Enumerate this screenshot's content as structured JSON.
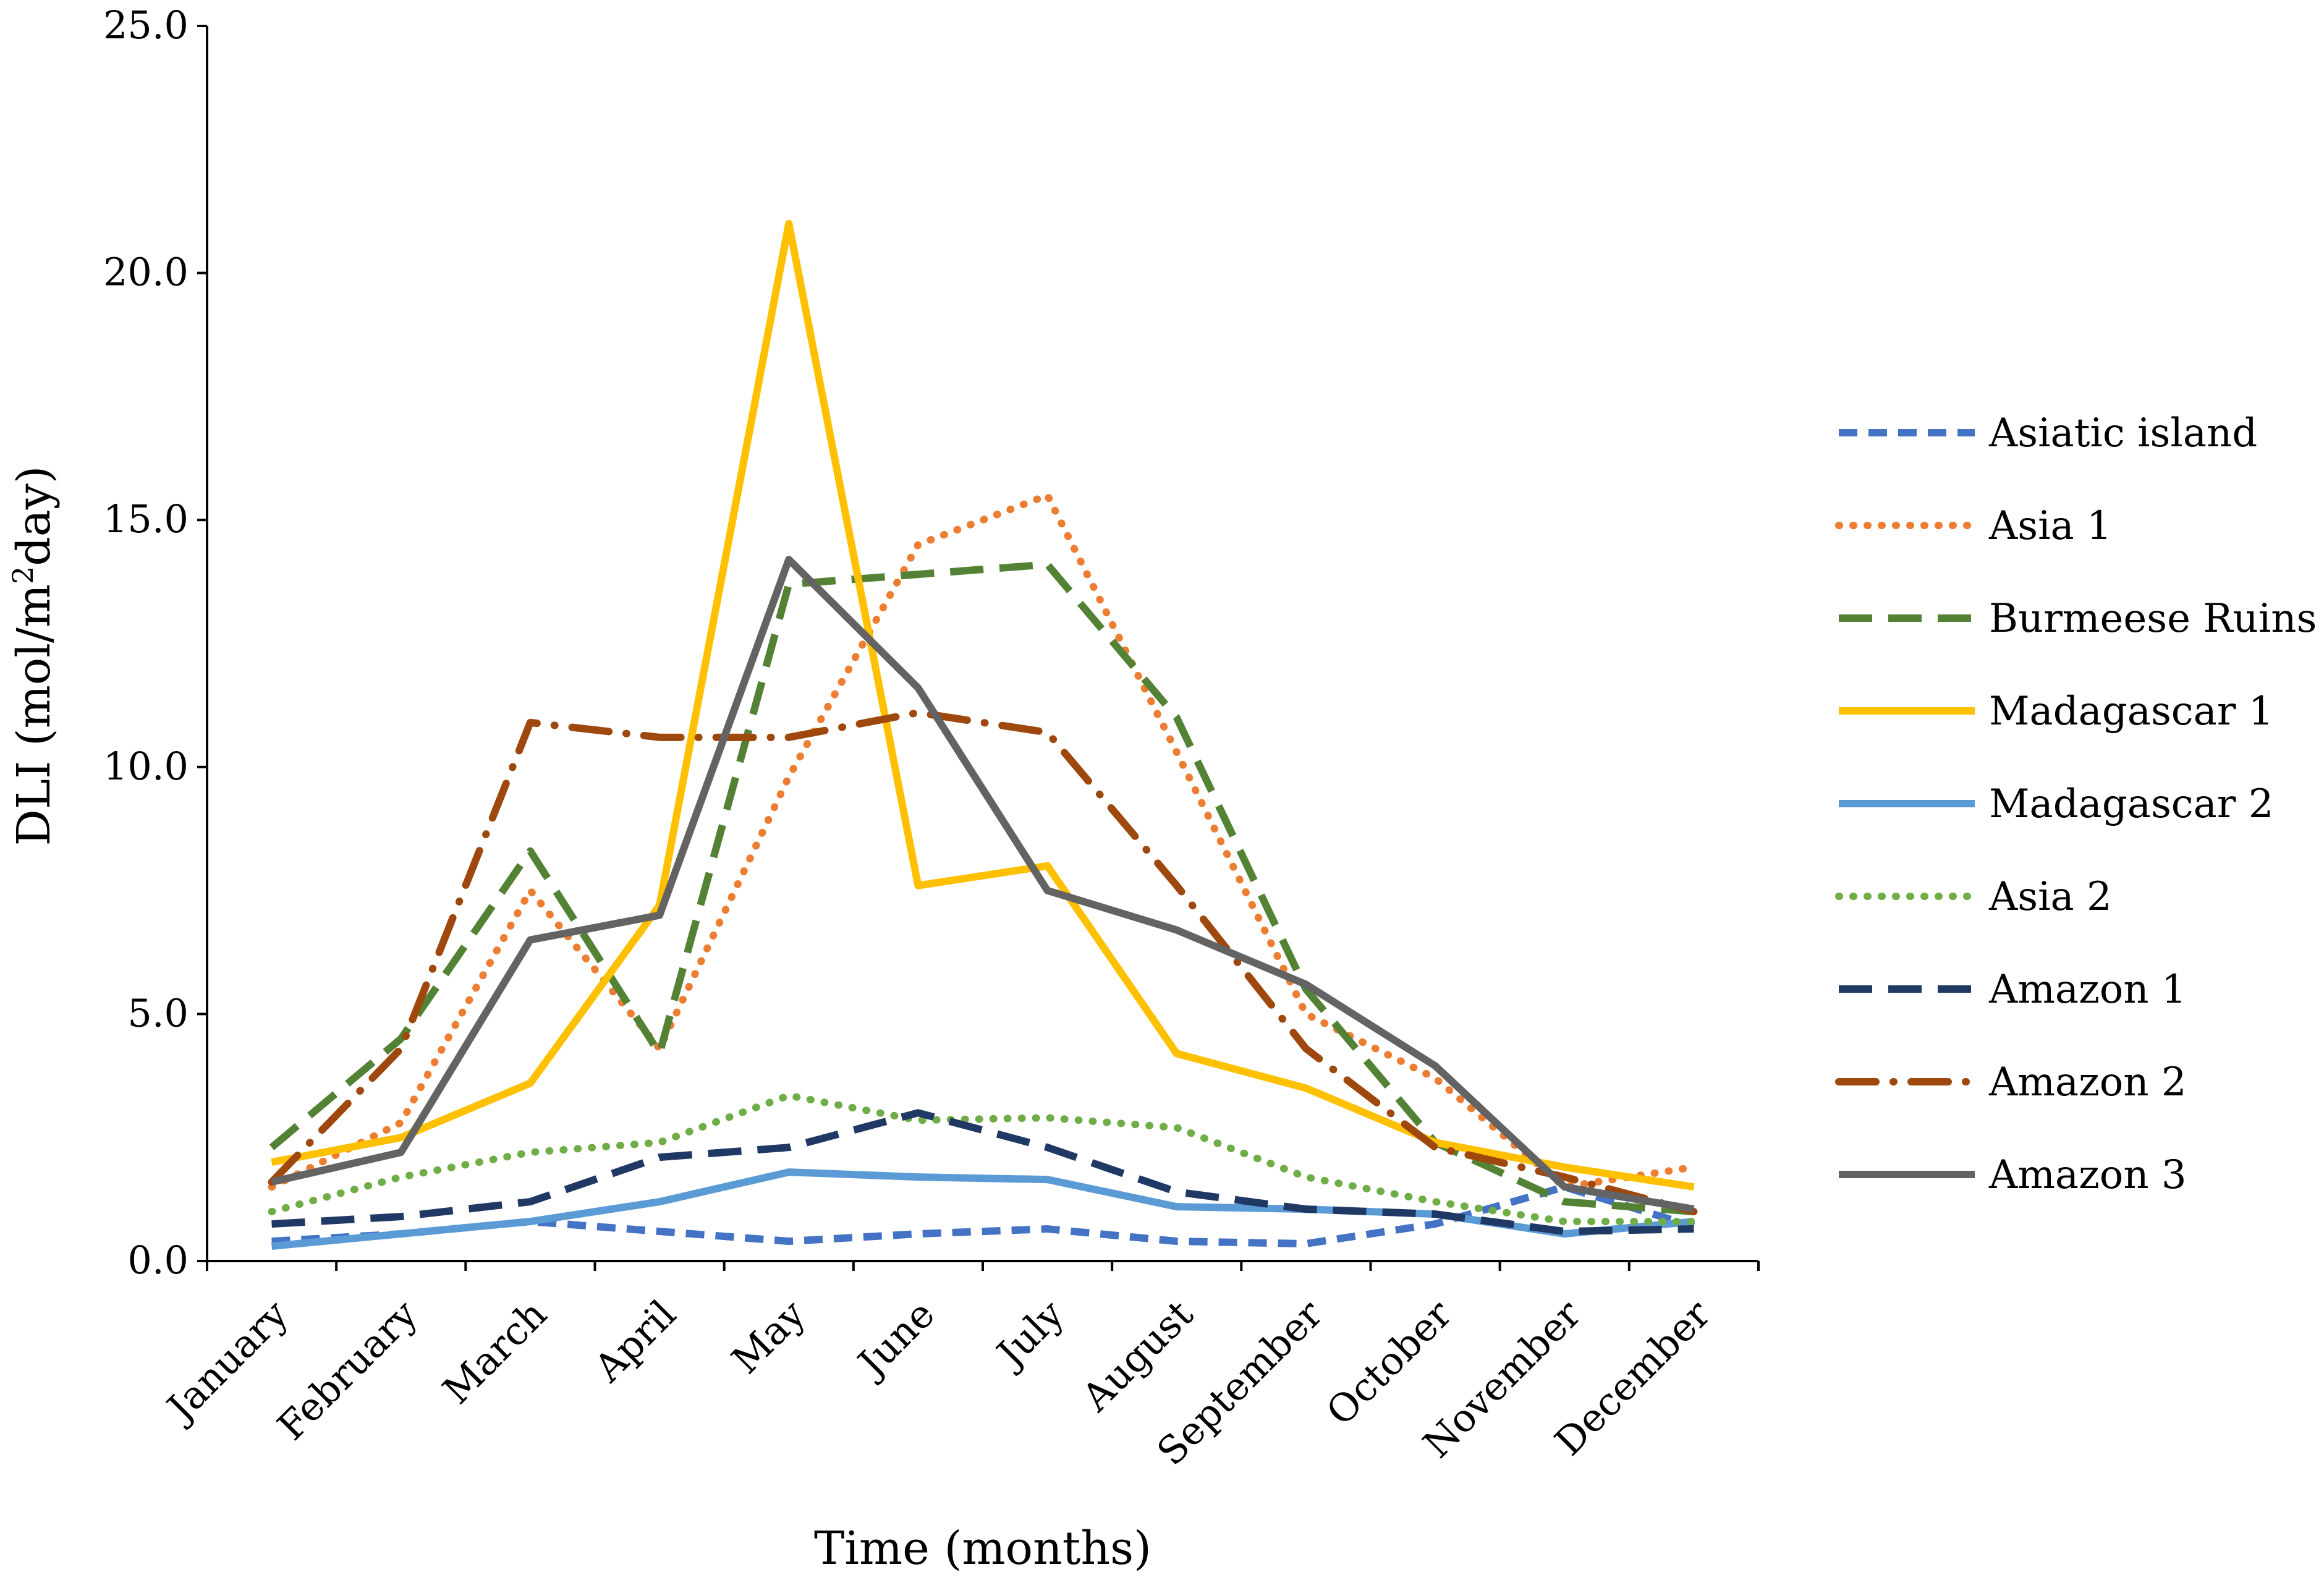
{
  "chart_data": {
    "type": "line",
    "title": "",
    "xlabel": "Time (months)",
    "ylabel": "DLI (mol/m²day)",
    "ylabel_main": "DLI (mol/m",
    "ylabel_sup": "2",
    "ylabel_tail": "day)",
    "ylim": [
      0,
      25
    ],
    "yticks": [
      "0.0",
      "5.0",
      "10.0",
      "15.0",
      "20.0",
      "25.0"
    ],
    "ytick_values": [
      0,
      5,
      10,
      15,
      20,
      25
    ],
    "categories": [
      "January",
      "February",
      "March",
      "April",
      "May",
      "June",
      "July",
      "August",
      "September",
      "October",
      "November",
      "December"
    ],
    "legend_position": "right",
    "grid": false,
    "series": [
      {
        "name": "Asiatic island",
        "color": "#4472C4",
        "style": "dash",
        "values": [
          0.4,
          0.55,
          0.8,
          0.6,
          0.4,
          0.55,
          0.65,
          0.4,
          0.35,
          0.75,
          1.5,
          0.7
        ]
      },
      {
        "name": "Asia 1",
        "color": "#ED7D31",
        "style": "dot",
        "values": [
          1.5,
          2.8,
          7.5,
          4.3,
          9.8,
          14.5,
          15.5,
          10.3,
          5.0,
          3.7,
          1.5,
          1.9
        ]
      },
      {
        "name": "Burmeese Ruins",
        "color": "#548235",
        "style": "longdash",
        "values": [
          2.3,
          4.5,
          8.3,
          4.2,
          13.7,
          13.9,
          14.1,
          11.0,
          5.5,
          2.4,
          1.2,
          1.0
        ]
      },
      {
        "name": "Madagascar 1",
        "color": "#FFC000",
        "style": "solid",
        "values": [
          2.0,
          2.5,
          3.6,
          7.2,
          21.0,
          7.6,
          8.0,
          4.2,
          3.5,
          2.4,
          1.9,
          1.5
        ]
      },
      {
        "name": "Madagascar 2",
        "color": "#5B9BD5",
        "style": "solid",
        "values": [
          0.3,
          0.55,
          0.8,
          1.2,
          1.8,
          1.7,
          1.65,
          1.1,
          1.05,
          0.95,
          0.55,
          0.8
        ]
      },
      {
        "name": "Asia 2",
        "color": "#70AD47",
        "style": "dot",
        "values": [
          1.0,
          1.7,
          2.2,
          2.4,
          3.35,
          2.85,
          2.9,
          2.7,
          1.7,
          1.2,
          0.8,
          0.8
        ]
      },
      {
        "name": "Amazon 1",
        "color": "#203864",
        "style": "longdash",
        "values": [
          0.75,
          0.9,
          1.2,
          2.1,
          2.3,
          3.0,
          2.3,
          1.4,
          1.05,
          0.95,
          0.6,
          0.65
        ]
      },
      {
        "name": "Amazon 2",
        "color": "#9E480E",
        "style": "dashdot",
        "values": [
          1.6,
          4.3,
          10.9,
          10.6,
          10.6,
          11.1,
          10.7,
          7.6,
          4.3,
          2.3,
          1.7,
          1.0
        ]
      },
      {
        "name": "Amazon 3",
        "color": "#636363",
        "style": "solid",
        "values": [
          1.6,
          2.2,
          6.5,
          7.0,
          14.2,
          11.6,
          7.5,
          6.7,
          5.6,
          3.95,
          1.5,
          1.05
        ]
      }
    ]
  }
}
